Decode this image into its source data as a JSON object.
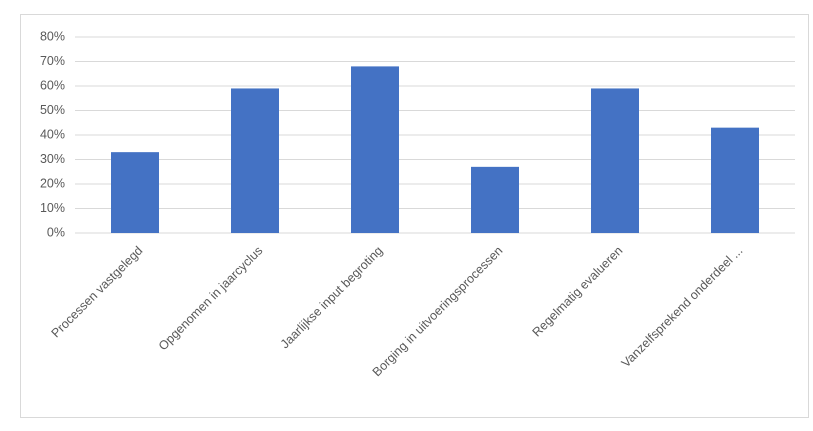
{
  "chart_data": {
    "type": "bar",
    "categories": [
      "Processen vastgelegd",
      "Opgenomen in jaarcyclus",
      "Jaarlijkse input begroting",
      "Borging in uitvoeringsprocessen",
      "Regelmatig evalueren",
      "Vanzelfsprekend onderdeel ..."
    ],
    "values": [
      33,
      59,
      68,
      27,
      59,
      43
    ],
    "color": "#4472c4",
    "ylim": [
      0,
      80
    ],
    "yticks": [
      {
        "value": 0,
        "label": "0%"
      },
      {
        "value": 10,
        "label": "10%"
      },
      {
        "value": 20,
        "label": "20%"
      },
      {
        "value": 30,
        "label": "30%"
      },
      {
        "value": 40,
        "label": "40%"
      },
      {
        "value": 50,
        "label": "50%"
      },
      {
        "value": 60,
        "label": "60%"
      },
      {
        "value": 70,
        "label": "70%"
      },
      {
        "value": 80,
        "label": "80%"
      }
    ],
    "grid": true
  }
}
